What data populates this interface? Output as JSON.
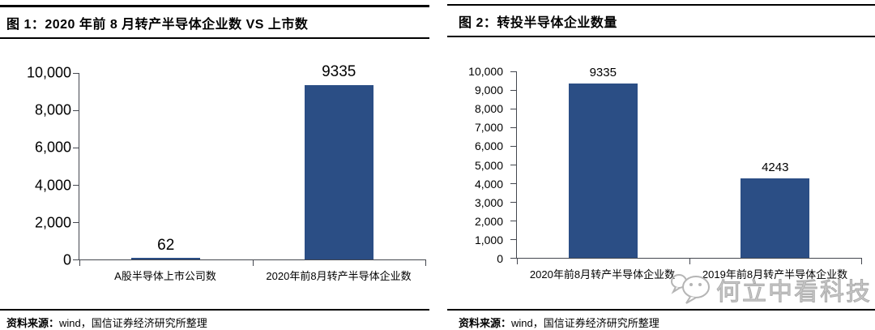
{
  "figures": [
    {
      "title": "图 1：2020 年前 8 月转产半导体企业数 VS 上市数",
      "source_prefix": "资料来源：",
      "source_text": "wind，国信证券经济研究所整理"
    },
    {
      "title": "图 2：转投半导体企业数量",
      "source_prefix": "资料来源：",
      "source_text": "wind，国信证券经济研究所整理"
    }
  ],
  "watermark": {
    "icon": "wechat-icon",
    "text": "何立中看科技"
  },
  "colors": {
    "bar": "#2B4E85",
    "axis": "#44474F",
    "rule": "#000000",
    "watermark": "#ababab"
  },
  "chart_data": [
    {
      "type": "bar",
      "title": "图 1：2020 年前 8 月转产半导体企业数 VS 上市数",
      "categories": [
        "A股半导体上市公司数",
        "2020年前8月转产半导体企业数"
      ],
      "values": [
        62,
        9335
      ],
      "bar_labels": [
        "62",
        "9335"
      ],
      "ylim": [
        0,
        10000
      ],
      "ytick_step": 2000,
      "yticks": [
        "0",
        "2,000",
        "4,000",
        "6,000",
        "8,000",
        "10,000"
      ],
      "grid": false,
      "legend": false
    },
    {
      "type": "bar",
      "title": "图 2：转投半导体企业数量",
      "categories": [
        "2020年前8月转产半导体企业数",
        "2019年前8月转产半导体企业数"
      ],
      "values": [
        9335,
        4243
      ],
      "bar_labels": [
        "9335",
        "4243"
      ],
      "ylim": [
        0,
        10000
      ],
      "ytick_step": 1000,
      "yticks": [
        "0",
        "1,000",
        "2,000",
        "3,000",
        "4,000",
        "5,000",
        "6,000",
        "7,000",
        "8,000",
        "9,000",
        "10,000"
      ],
      "grid": false,
      "legend": false
    }
  ]
}
